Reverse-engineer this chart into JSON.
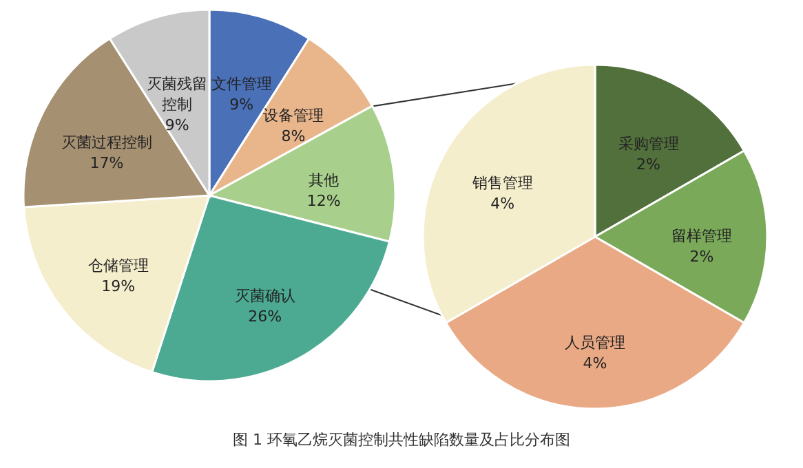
{
  "chart_data": [
    {
      "type": "pie",
      "title": "图 1 环氧乙烷灭菌控制共性缺陷数量及占比分布图",
      "categories": [
        "文件管理",
        "设备管理",
        "其他",
        "灭菌确认",
        "仓储管理",
        "灭菌过程控制",
        "灭菌残留控制"
      ],
      "values": [
        9,
        8,
        12,
        26,
        19,
        17,
        9
      ],
      "value_labels": [
        "9%",
        "8%",
        "12%",
        "26%",
        "19%",
        "17%",
        "9%"
      ],
      "colors": [
        "#4a70b8",
        "#e9b68c",
        "#a8d08c",
        "#4caa92",
        "#f5eecd",
        "#a69072",
        "#c9c9c9"
      ]
    },
    {
      "type": "pie",
      "categories": [
        "采购管理",
        "留样管理",
        "人员管理",
        "销售管理"
      ],
      "values": [
        2,
        2,
        4,
        4
      ],
      "value_labels": [
        "2%",
        "2%",
        "4%",
        "4%"
      ],
      "colors": [
        "#52703c",
        "#7ba95a",
        "#e9a985",
        "#f5eecd"
      ]
    }
  ]
}
